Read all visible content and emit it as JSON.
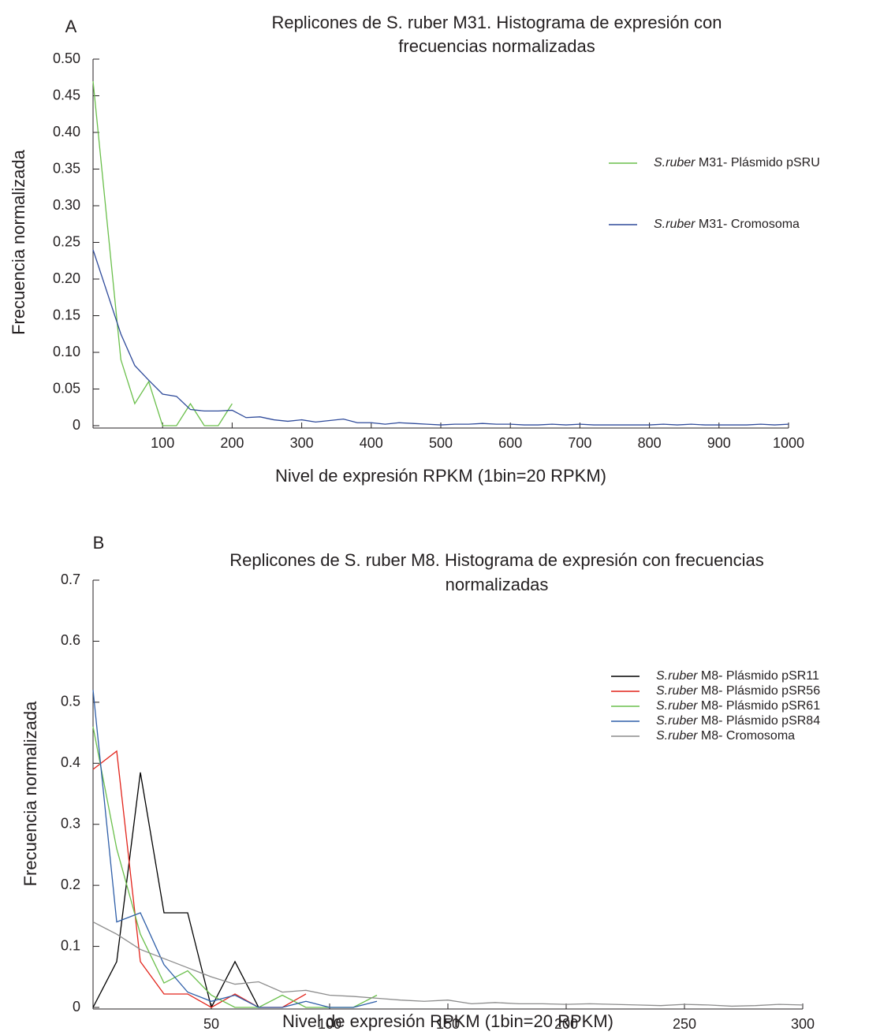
{
  "chart_data": [
    {
      "type": "line",
      "panel_label": "A",
      "title": [
        "Replicones de S. ruber M31. Histograma de expresión con",
        "frecuencias normalizadas"
      ],
      "x_label": "Nivel de expresión RPKM (1bin=20 RPKM)",
      "y_label": "Frecuencia normalizada",
      "xlim": [
        0,
        1000
      ],
      "ylim": [
        0,
        0.5
      ],
      "xticks": [
        100,
        200,
        300,
        400,
        500,
        600,
        700,
        800,
        900,
        1000
      ],
      "yticks": [
        0,
        0.05,
        {
          "value": 0.1,
          "label": "0.10"
        },
        0.15,
        {
          "value": 0.2,
          "label": "0.20"
        },
        0.25,
        {
          "value": 0.3,
          "label": "0.30"
        },
        0.35,
        {
          "value": 0.4,
          "label": "0.40"
        },
        0.45,
        {
          "value": 0.5,
          "label": "0.50"
        }
      ],
      "grid": false,
      "legend": "right",
      "series": [
        {
          "name": "S.ruber M31- Plásmido pSRU",
          "color": "#6abf4b",
          "x": [
            0,
            40,
            60,
            80,
            100,
            120,
            140,
            160,
            180,
            200
          ],
          "values": [
            0.47,
            0.09,
            0.03,
            0.06,
            0,
            0,
            0.03,
            0,
            0,
            0.03
          ]
        },
        {
          "name": "S.ruber M31- Cromosoma",
          "color": "#2e4a9a",
          "x": [
            0,
            40,
            60,
            80,
            100,
            120,
            140,
            160,
            180,
            200,
            220,
            240,
            260,
            280,
            300,
            320,
            340,
            360,
            380,
            400,
            420,
            440,
            460,
            480,
            500,
            520,
            540,
            560,
            580,
            600,
            620,
            640,
            660,
            680,
            700,
            720,
            740,
            760,
            780,
            800,
            820,
            840,
            860,
            880,
            900,
            920,
            940,
            960,
            980,
            1000
          ],
          "values": [
            0.24,
            0.125,
            0.082,
            0.062,
            0.043,
            0.04,
            0.022,
            0.02,
            0.02,
            0.021,
            0.011,
            0.012,
            0.008,
            0.006,
            0.008,
            0.005,
            0.007,
            0.009,
            0.004,
            0.004,
            0.002,
            0.004,
            0.003,
            0.002,
            0.001,
            0.002,
            0.002,
            0.003,
            0.002,
            0.002,
            0.001,
            0.001,
            0.002,
            0.001,
            0.002,
            0.001,
            0.001,
            0.001,
            0.001,
            0.001,
            0.002,
            0.001,
            0.002,
            0.001,
            0.001,
            0.001,
            0.001,
            0.002,
            0.001,
            0.002
          ]
        }
      ]
    },
    {
      "type": "line",
      "panel_label": "B",
      "title": [
        "Replicones de S. ruber M8. Histograma de expresión con frecuencias",
        "normalizadas"
      ],
      "x_label": "Nivel de expresión RPKM (1bin=20 RPKM)",
      "y_label": "Frecuencia normalizada",
      "xlim": [
        0,
        300
      ],
      "ylim": [
        0,
        0.7
      ],
      "xticks": [
        50,
        100,
        150,
        200,
        250,
        300
      ],
      "yticks": [
        0,
        0.1,
        0.2,
        0.3,
        0.4,
        0.5,
        0.6,
        0.7
      ],
      "grid": false,
      "legend": "right",
      "series": [
        {
          "name": "S.ruber M8- Plásmido pSR11",
          "color": "#000000",
          "x": [
            0,
            10,
            20,
            30,
            40,
            50,
            60,
            70
          ],
          "values": [
            0,
            0.075,
            0.385,
            0.155,
            0.155,
            0,
            0.075,
            0
          ]
        },
        {
          "name": "S.ruber M8- Plásmido pSR56",
          "color": "#e2231a",
          "x": [
            0,
            10,
            20,
            30,
            40,
            50,
            60,
            70,
            80,
            90
          ],
          "values": [
            0.39,
            0.42,
            0.075,
            0.022,
            0.022,
            0,
            0.022,
            0,
            0,
            0.022
          ]
        },
        {
          "name": "S.ruber M8- Plásmido pSR61",
          "color": "#6abf4b",
          "x": [
            0,
            10,
            20,
            30,
            40,
            50,
            60,
            70,
            80,
            90,
            100,
            110,
            120
          ],
          "values": [
            0.46,
            0.26,
            0.12,
            0.04,
            0.06,
            0.02,
            0,
            0,
            0.02,
            0,
            0,
            0,
            0.02
          ]
        },
        {
          "name": "S.ruber M8- Plásmido pSR84",
          "color": "#2e5ea8",
          "x": [
            0,
            10,
            20,
            30,
            40,
            50,
            60,
            70,
            80,
            90,
            100,
            110,
            120
          ],
          "values": [
            0.52,
            0.14,
            0.155,
            0.07,
            0.025,
            0.01,
            0.02,
            0,
            0,
            0.01,
            0,
            0,
            0.01
          ]
        },
        {
          "name": "S.ruber M8- Cromosoma",
          "color": "#8c8c8c",
          "x": [
            0,
            10,
            20,
            30,
            40,
            50,
            60,
            70,
            80,
            90,
            100,
            110,
            120,
            130,
            140,
            150,
            160,
            170,
            180,
            190,
            200,
            210,
            220,
            230,
            240,
            250,
            260,
            270,
            280,
            290,
            300
          ],
          "values": [
            0.14,
            0.12,
            0.095,
            0.08,
            0.065,
            0.05,
            0.038,
            0.042,
            0.025,
            0.028,
            0.02,
            0.018,
            0.015,
            0.012,
            0.01,
            0.012,
            0.006,
            0.008,
            0.006,
            0.006,
            0.005,
            0.006,
            0.005,
            0.004,
            0.003,
            0.005,
            0.004,
            0.002,
            0.003,
            0.005,
            0.004
          ]
        }
      ]
    }
  ]
}
